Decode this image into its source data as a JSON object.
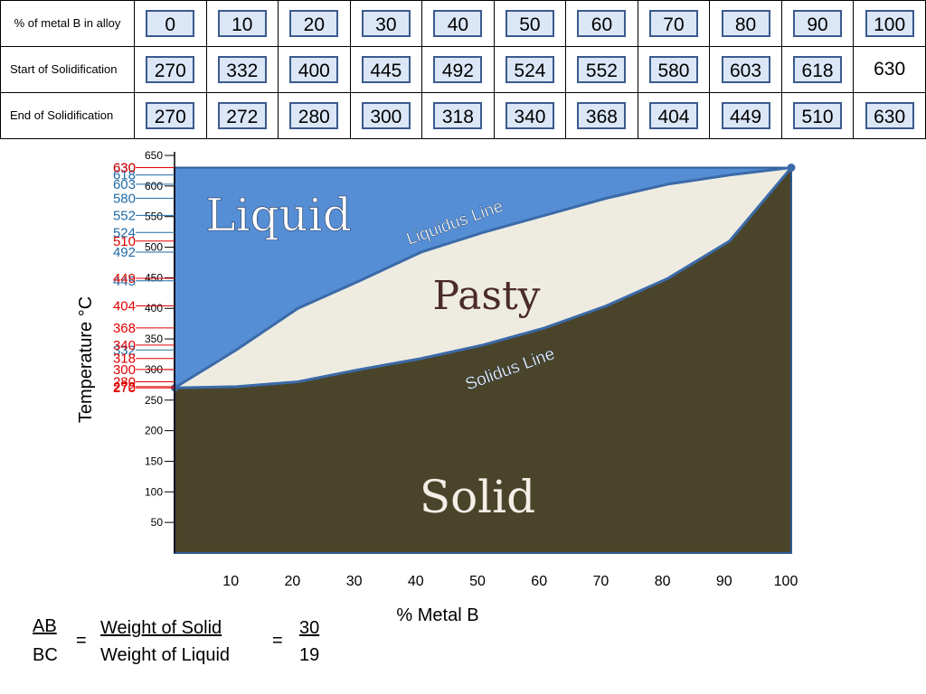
{
  "table": {
    "rows": [
      {
        "label": "% of metal B in alloy",
        "values": [
          "0",
          "10",
          "20",
          "30",
          "40",
          "50",
          "60",
          "70",
          "80",
          "90",
          "100"
        ]
      },
      {
        "label": "Start of Solidification",
        "values": [
          "270",
          "332",
          "400",
          "445",
          "492",
          "524",
          "552",
          "580",
          "603",
          "618",
          "630"
        ]
      },
      {
        "label": "End of Solidification",
        "values": [
          "270",
          "272",
          "280",
          "300",
          "318",
          "340",
          "368",
          "404",
          "449",
          "510",
          "630"
        ]
      }
    ]
  },
  "chart_data": {
    "type": "area",
    "ylabel": "Temperature °C",
    "xlabel": "% Metal B",
    "xlim": [
      0,
      100
    ],
    "ylim": [
      0,
      650
    ],
    "x_ticks": [
      "10",
      "20",
      "30",
      "40",
      "50",
      "60",
      "70",
      "80",
      "90",
      "100"
    ],
    "y_ticks": [
      "50",
      "100",
      "150",
      "200",
      "250",
      "300",
      "350",
      "400",
      "450",
      "500",
      "550",
      "600",
      "650"
    ],
    "series": [
      {
        "name": "Liquidus Line",
        "x": [
          0,
          10,
          20,
          30,
          40,
          50,
          60,
          70,
          80,
          90,
          100
        ],
        "y": [
          270,
          332,
          400,
          445,
          492,
          524,
          552,
          580,
          603,
          618,
          630
        ]
      },
      {
        "name": "Solidus Line",
        "x": [
          0,
          10,
          20,
          30,
          40,
          50,
          60,
          70,
          80,
          90,
          100
        ],
        "y": [
          270,
          272,
          280,
          300,
          318,
          340,
          368,
          404,
          449,
          510,
          630
        ]
      }
    ],
    "region_labels": [
      "Liquid",
      "Pasty",
      "Solid"
    ],
    "liquidus_axis_labels": [
      "332",
      "445",
      "492",
      "524",
      "552",
      "580",
      "603",
      "618",
      "630"
    ],
    "solidus_axis_labels": [
      "270",
      "272",
      "280",
      "300",
      "318",
      "340",
      "368",
      "404",
      "449",
      "510",
      "630"
    ],
    "colors": {
      "liquid": "#558ed5",
      "pasty": "#eeece1",
      "solid": "#4a452a",
      "liquidus_labels": "#1f6aa5",
      "solidus_labels": "#e00000"
    }
  },
  "formula": {
    "lhs_top": "AB",
    "lhs_bottom": "BC",
    "eq1": "=",
    "mid_top": "Weight of Solid",
    "mid_bottom": "Weight of Liquid",
    "eq2": "=",
    "rhs_top": "30",
    "rhs_bottom": "19"
  }
}
